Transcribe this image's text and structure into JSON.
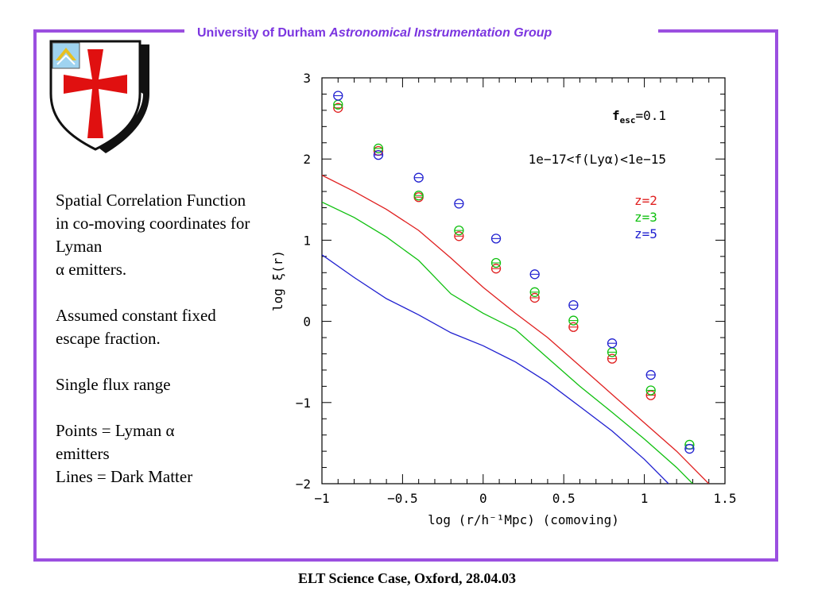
{
  "header": {
    "part1": "University of Durham",
    "part2": "Astronomical Instrumentation Group"
  },
  "notes": {
    "p1": "Spatial Correlation Function in co-moving coordinates for Lyman",
    "p1_alpha": "α",
    "p1_tail": " emitters.",
    "p2": "Assumed constant fixed escape fraction.",
    "p3": "Single flux range",
    "p4a": "Points = Lyman ",
    "p4_alpha": "α",
    "p4b": " emitters",
    "p5": "Lines = Dark Matter"
  },
  "footer": "ELT Science Case, Oxford, 28.04.03",
  "colors": {
    "frame": "#9b4fe0",
    "header": "#7b35e0",
    "z2": "#e02020",
    "z3": "#10c010",
    "z5": "#2020d0"
  },
  "icons": {
    "crest": "durham-crest-icon"
  },
  "chart_data": {
    "type": "scatter",
    "xlabel": "log (r/h⁻¹Mpc) (comoving)",
    "ylabel": "log ξ(r)",
    "xlim": [
      -1,
      1.5
    ],
    "ylim": [
      -2,
      3
    ],
    "xticks": [
      "-1",
      "-0.5",
      "0",
      "0.5",
      "1",
      "1.5"
    ],
    "yticks": [
      "-2",
      "-1",
      "0",
      "1",
      "2",
      "3"
    ],
    "annotations": {
      "fesc_prefix": "f",
      "fesc_sub": "esc",
      "fesc_value": "=0.1",
      "flux": "1e-17<f(Lyα)<1e-15"
    },
    "legend_position": "right",
    "series": [
      {
        "name": "z=2",
        "color": "#e02020",
        "points": [
          [
            -0.9,
            2.63
          ],
          [
            -0.65,
            2.1
          ],
          [
            -0.4,
            1.53
          ],
          [
            -0.15,
            1.05
          ],
          [
            0.08,
            0.65
          ],
          [
            0.32,
            0.29
          ],
          [
            0.56,
            -0.07
          ],
          [
            0.8,
            -0.46
          ],
          [
            1.04,
            -0.91
          ]
        ],
        "line": [
          [
            -1,
            1.8
          ],
          [
            -0.8,
            1.6
          ],
          [
            -0.6,
            1.38
          ],
          [
            -0.4,
            1.12
          ],
          [
            -0.2,
            0.78
          ],
          [
            0,
            0.42
          ],
          [
            0.2,
            0.1
          ],
          [
            0.4,
            -0.2
          ],
          [
            0.6,
            -0.55
          ],
          [
            0.8,
            -0.9
          ],
          [
            1.0,
            -1.25
          ],
          [
            1.2,
            -1.6
          ],
          [
            1.4,
            -2.0
          ]
        ]
      },
      {
        "name": "z=3",
        "color": "#10c010",
        "points": [
          [
            -0.9,
            2.67
          ],
          [
            -0.65,
            2.13
          ],
          [
            -0.4,
            1.55
          ],
          [
            -0.15,
            1.12
          ],
          [
            0.08,
            0.72
          ],
          [
            0.32,
            0.36
          ],
          [
            0.56,
            0.01
          ],
          [
            0.8,
            -0.38
          ],
          [
            1.04,
            -0.85
          ],
          [
            1.28,
            -1.52
          ]
        ],
        "line": [
          [
            -1,
            1.47
          ],
          [
            -0.8,
            1.28
          ],
          [
            -0.6,
            1.04
          ],
          [
            -0.4,
            0.75
          ],
          [
            -0.2,
            0.34
          ],
          [
            0,
            0.1
          ],
          [
            0.2,
            -0.1
          ],
          [
            0.4,
            -0.45
          ],
          [
            0.6,
            -0.8
          ],
          [
            0.8,
            -1.12
          ],
          [
            1.0,
            -1.45
          ],
          [
            1.2,
            -1.8
          ],
          [
            1.3,
            -2.0
          ]
        ]
      },
      {
        "name": "z=5",
        "color": "#2020d0",
        "points": [
          [
            -0.9,
            2.78
          ],
          [
            -0.65,
            2.05
          ],
          [
            -0.4,
            1.77
          ],
          [
            -0.15,
            1.45
          ],
          [
            0.08,
            1.02
          ],
          [
            0.32,
            0.58
          ],
          [
            0.56,
            0.2
          ],
          [
            0.8,
            -0.27
          ],
          [
            1.04,
            -0.66
          ],
          [
            1.28,
            -1.57
          ]
        ],
        "line": [
          [
            -1,
            0.82
          ],
          [
            -0.8,
            0.54
          ],
          [
            -0.6,
            0.28
          ],
          [
            -0.4,
            0.08
          ],
          [
            -0.2,
            -0.14
          ],
          [
            0,
            -0.3
          ],
          [
            0.2,
            -0.5
          ],
          [
            0.4,
            -0.75
          ],
          [
            0.6,
            -1.05
          ],
          [
            0.8,
            -1.35
          ],
          [
            1.0,
            -1.7
          ],
          [
            1.15,
            -2.0
          ]
        ]
      }
    ]
  }
}
